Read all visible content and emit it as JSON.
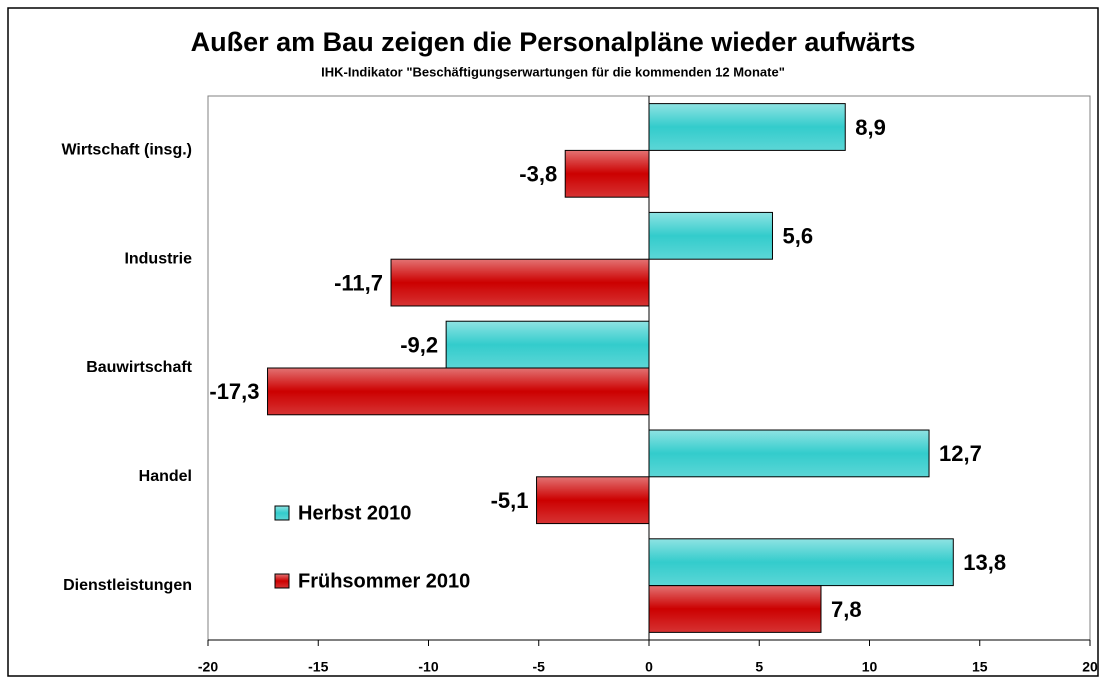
{
  "chart_data": {
    "type": "hbar",
    "title": "Außer am Bau zeigen die Personalpläne wieder aufwärts",
    "subtitle": "IHK-Indikator \"Beschäftigungserwartungen für die kommenden 12 Monate\"",
    "categories": [
      "Wirtschaft (insg.)",
      "Industrie",
      "Bauwirtschaft",
      "Handel",
      "Dienstleistungen"
    ],
    "series": [
      {
        "name": "Herbst 2010",
        "color": "#33cccc",
        "values": [
          8.9,
          5.6,
          -9.2,
          12.7,
          13.8
        ],
        "value_labels": [
          "8,9",
          "5,6",
          "-9,2",
          "12,7",
          "13,8"
        ]
      },
      {
        "name": "Frühsommer 2010",
        "color": "#cc0000",
        "values": [
          -3.8,
          -11.7,
          -17.3,
          -5.1,
          7.8
        ],
        "value_labels": [
          "-3,8",
          "-11,7",
          "-17,3",
          "-5,1",
          "7,8"
        ]
      }
    ],
    "xlim": [
      -20,
      20
    ],
    "xticks": [
      -20,
      -15,
      -10,
      -5,
      0,
      5,
      10,
      15,
      20
    ],
    "legend": "lower left"
  }
}
